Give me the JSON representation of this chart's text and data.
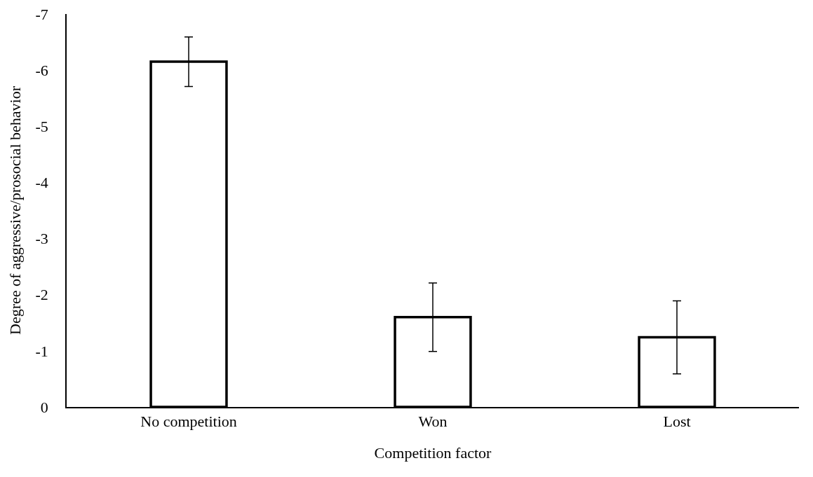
{
  "chart_data": {
    "type": "bar",
    "xlabel": "Competition factor",
    "ylabel": "Degree of aggressive/prosocial behavior",
    "categories": [
      "No competition",
      "Won",
      "Lost"
    ],
    "series": [
      {
        "color": "#ffffff",
        "values": [
          -6.15,
          -1.6,
          -1.24
        ],
        "errors": [
          0.44,
          0.61,
          0.65
        ]
      }
    ],
    "ylim": [
      0,
      -7
    ],
    "yticks": [
      0,
      -1,
      -2,
      -3,
      -4,
      -5,
      -6,
      -7
    ],
    "grid": false
  }
}
